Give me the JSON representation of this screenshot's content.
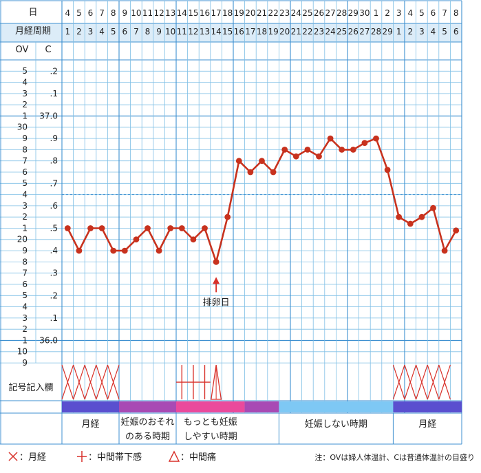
{
  "header": {
    "date_row_label": "日",
    "cycle_row_label": "月経周期",
    "ov_col_label": "OV",
    "c_col_label": "C"
  },
  "left_scale": {
    "ov_labels": [
      "5",
      "4",
      "3",
      "2",
      "1",
      "30",
      "9",
      "8",
      "7",
      "6",
      "5",
      "4",
      "3",
      "2",
      "1",
      "20",
      "9",
      "8",
      "7",
      "6",
      "5",
      "4",
      "3",
      "2",
      "1",
      "10",
      "9"
    ],
    "c_labels": [
      ".2",
      ".1",
      "37.0",
      ".9",
      ".8",
      ".7",
      ".6",
      ".5",
      ".4",
      ".3",
      ".2",
      ".1",
      "36.0"
    ],
    "c_label_rows": [
      1,
      3,
      5,
      7,
      9,
      11,
      13,
      15,
      17,
      19,
      21,
      23,
      25
    ]
  },
  "chart_data": {
    "type": "line",
    "title": "",
    "xlabel": "",
    "ylabel": "",
    "y_unit_c": "°C",
    "ylim": [
      35.95,
      37.3
    ],
    "dates": [
      "4",
      "5",
      "6",
      "7",
      "8",
      "9",
      "10",
      "11",
      "12",
      "13",
      "14",
      "15",
      "16",
      "17",
      "18",
      "19",
      "20",
      "21",
      "22",
      "23",
      "24",
      "25",
      "26",
      "27",
      "28",
      "29",
      "30",
      "1",
      "2",
      "3",
      "4",
      "5",
      "6",
      "7",
      "8"
    ],
    "cycle_days": [
      "1",
      "2",
      "3",
      "4",
      "5",
      "6",
      "7",
      "8",
      "9",
      "10",
      "11",
      "12",
      "13",
      "14",
      "15",
      "16",
      "17",
      "18",
      "19",
      "20",
      "21",
      "22",
      "23",
      "24",
      "25",
      "26",
      "27",
      "28",
      "29",
      "1",
      "2",
      "3",
      "4",
      "5",
      "6"
    ],
    "series": [
      {
        "values": [
          36.55,
          36.45,
          36.55,
          36.55,
          36.45,
          36.45,
          36.5,
          36.55,
          36.45,
          36.55,
          36.55,
          36.5,
          36.55,
          36.4,
          36.6,
          36.85,
          36.8,
          36.85,
          36.8,
          36.9,
          36.87,
          36.9,
          36.87,
          36.95,
          36.9,
          36.9,
          36.93,
          36.95,
          36.81,
          36.6,
          36.57,
          36.6,
          36.64,
          36.45,
          36.54
        ]
      }
    ],
    "ovulation_line": 36.7,
    "annotation": {
      "text": "排卵日",
      "day_index": 13
    }
  },
  "symbols_row": {
    "label": "記号記入欄",
    "menstruation_day_indices": [
      0,
      1,
      2,
      3,
      4,
      29,
      30,
      31,
      32,
      33
    ],
    "discharge_day_indices": [
      10,
      11,
      12
    ],
    "pain_day_indices": [
      13
    ]
  },
  "phases": [
    {
      "label_lines": [
        "月経"
      ],
      "start": 0,
      "end": 5,
      "color": "#5a4fcf"
    },
    {
      "label_lines": [
        "妊娠のおそれ",
        "のある時期"
      ],
      "start": 5,
      "end": 10,
      "color": "#a84ab4"
    },
    {
      "label_lines": [
        "もっとも妊娠",
        "しやすい時期"
      ],
      "start": 10,
      "end": 16,
      "color": "#ea4a9c"
    },
    {
      "label_lines": [],
      "start": 16,
      "end": 19,
      "color": "#a84ab4"
    },
    {
      "label_lines": [
        "妊娠しない時期"
      ],
      "start": 19,
      "end": 29,
      "color": "#7ec8f4"
    },
    {
      "label_lines": [
        "月経"
      ],
      "start": 29,
      "end": 35,
      "color": "#5a4fcf"
    }
  ],
  "legend": {
    "menstruation": "：月経",
    "discharge": "：中間帯下感",
    "pain": "：中間痛",
    "note": "注：OVは婦人体温計、Cは普通体温計の目盛り"
  },
  "colors": {
    "grid_line": "#7fbfe5",
    "grid_bold": "#3d8fd0",
    "series_line": "#c8321e",
    "symbol": "#d8312a",
    "header_bg": "#dcecf8"
  }
}
